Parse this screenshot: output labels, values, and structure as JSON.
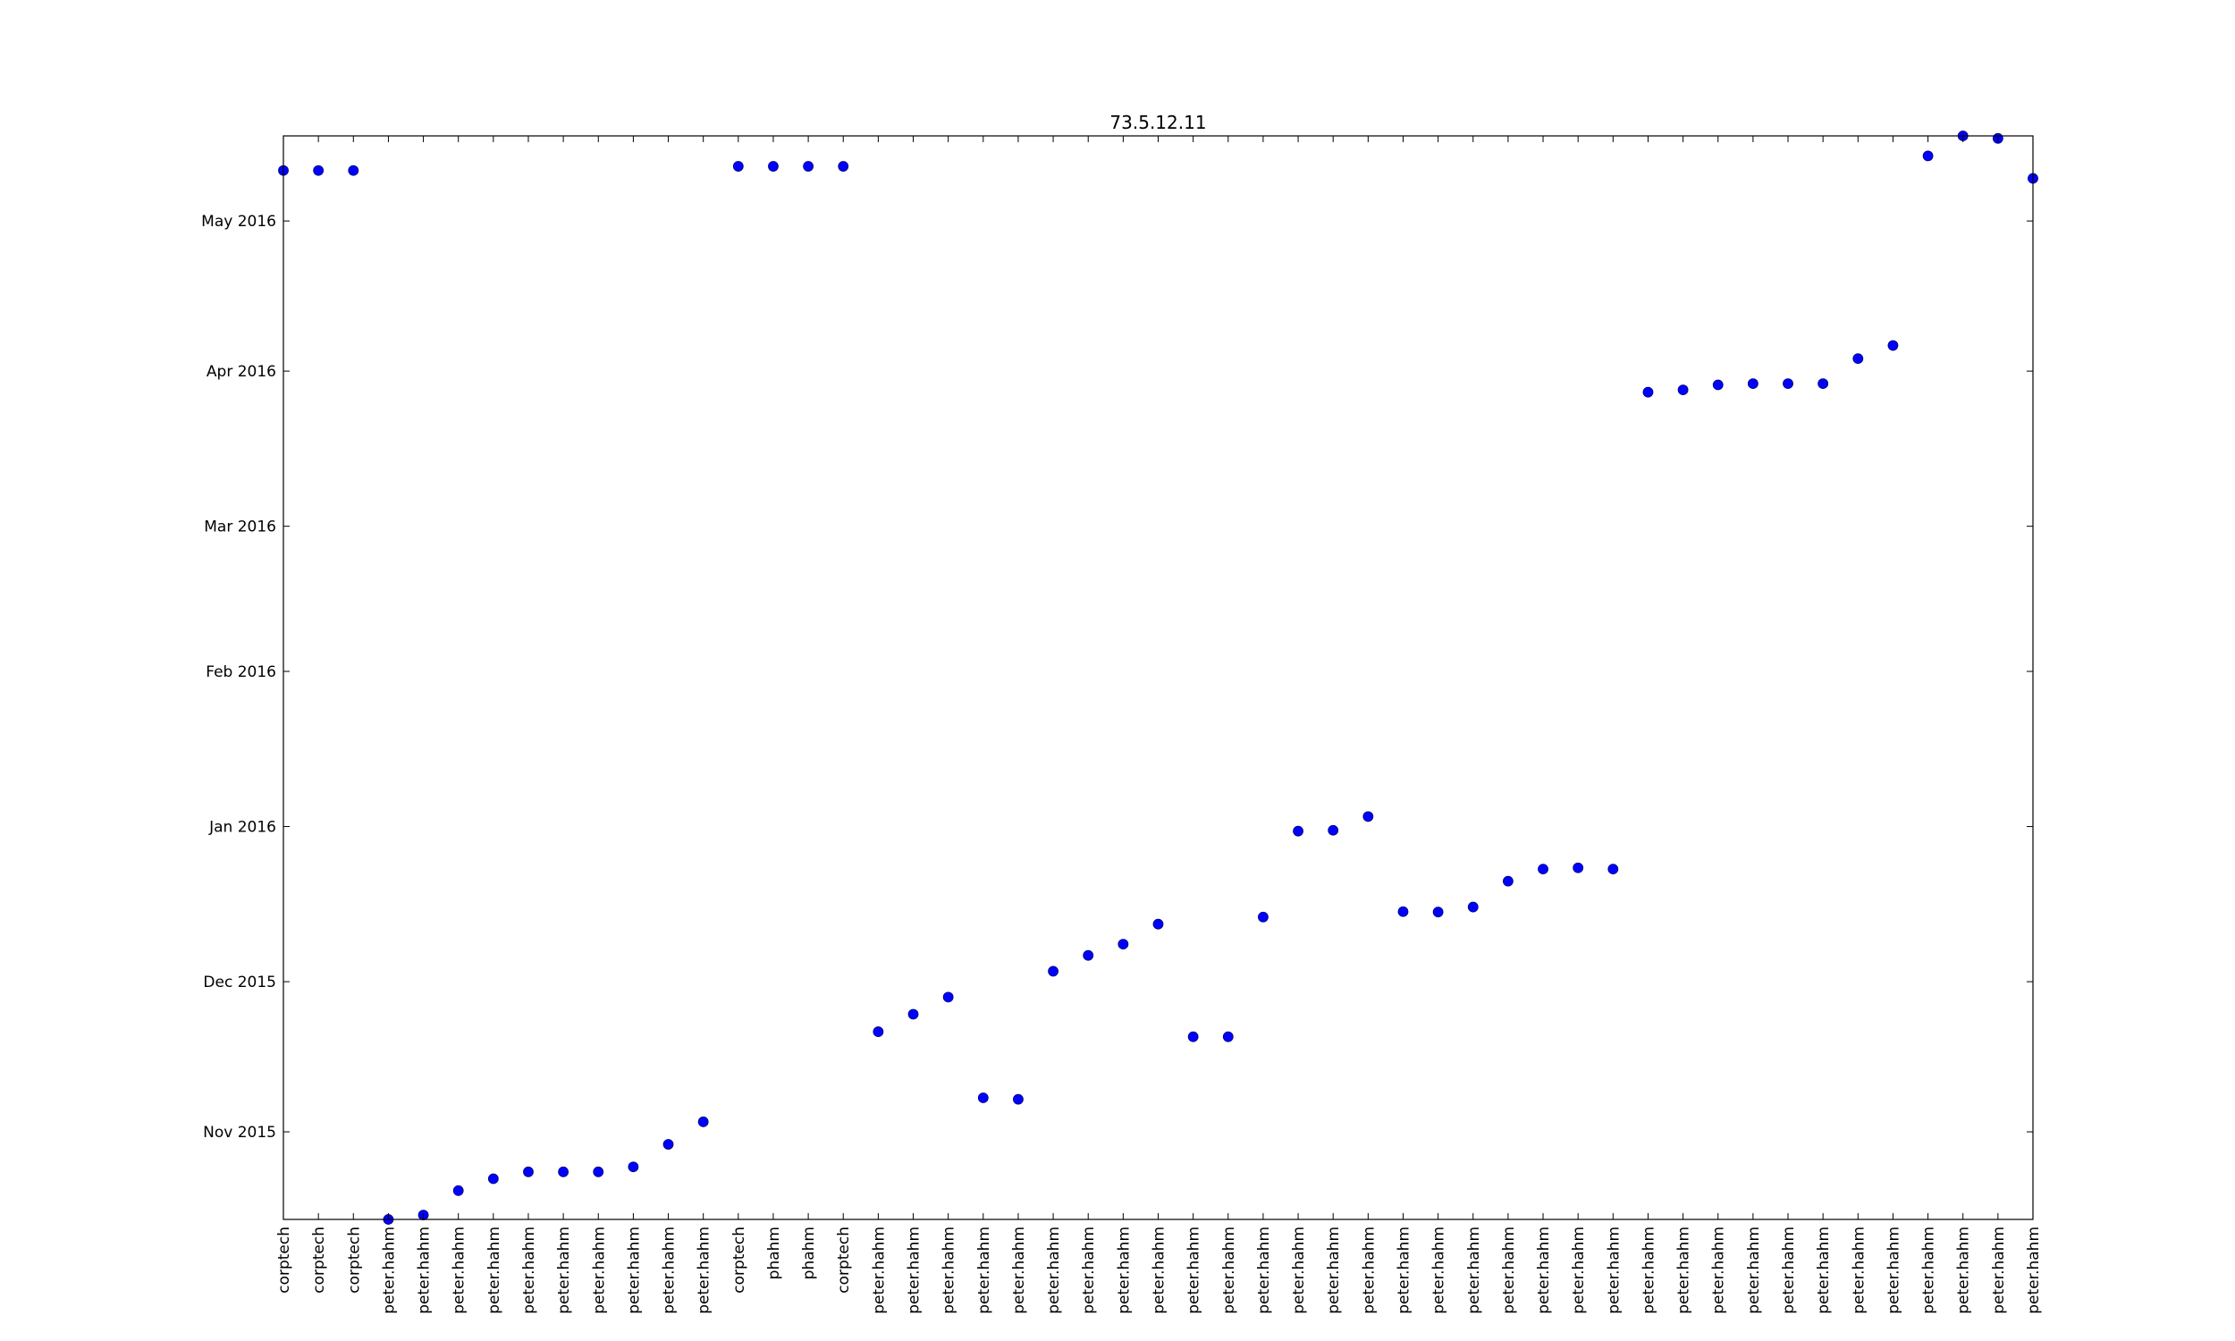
{
  "chart_data": {
    "type": "scatter",
    "title": "73.5.12.11",
    "xlabel": "",
    "ylabel": "",
    "grid": false,
    "legend": "none",
    "categories": [
      "corptech",
      "corptech",
      "corptech",
      "peter.hahm",
      "peter.hahm",
      "peter.hahm",
      "peter.hahm",
      "peter.hahm",
      "peter.hahm",
      "peter.hahm",
      "peter.hahm",
      "peter.hahm",
      "peter.hahm",
      "corptech",
      "phahm",
      "phahm",
      "corptech",
      "peter.hahm",
      "peter.hahm",
      "peter.hahm",
      "peter.hahm",
      "peter.hahm",
      "peter.hahm",
      "peter.hahm",
      "peter.hahm",
      "peter.hahm",
      "peter.hahm",
      "peter.hahm",
      "peter.hahm",
      "peter.hahm",
      "peter.hahm",
      "peter.hahm",
      "peter.hahm",
      "peter.hahm",
      "peter.hahm",
      "peter.hahm",
      "peter.hahm",
      "peter.hahm",
      "peter.hahm",
      "peter.hahm",
      "peter.hahm",
      "peter.hahm",
      "peter.hahm",
      "peter.hahm",
      "peter.hahm",
      "peter.hahm",
      "peter.hahm",
      "peter.hahm",
      "peter.hahm",
      "peter.hahm",
      "peter.hahm"
    ],
    "y_ticks": [
      "Nov 2015",
      "Dec 2015",
      "Jan 2016",
      "Feb 2016",
      "Mar 2016",
      "Apr 2016",
      "May 2016"
    ],
    "ylim": [
      "2015-10-14 12:00",
      "2016-05-18 00:00"
    ],
    "series": [
      {
        "color": "#0000ff",
        "marker": "circle",
        "y": [
          "2016-05-11 02:00",
          "2016-05-11 02:00",
          "2016-05-11 02:00",
          "2015-10-14 12:00",
          "2015-10-15 09:00",
          "2015-10-20 06:00",
          "2015-10-22 15:00",
          "2015-10-24 00:00",
          "2015-10-24 00:00",
          "2015-10-24 00:00",
          "2015-10-25 00:00",
          "2015-10-29 12:00",
          "2015-11-03 00:00",
          "2016-05-11 22:00",
          "2016-05-11 22:00",
          "2016-05-11 22:00",
          "2016-05-11 22:00",
          "2015-11-21 00:00",
          "2015-11-24 12:00",
          "2015-11-27 22:00",
          "2015-11-07 19:00",
          "2015-11-07 12:00",
          "2015-12-03 02:00",
          "2015-12-06 06:00",
          "2015-12-08 12:00",
          "2015-12-12 12:00",
          "2015-11-20 00:00",
          "2015-11-20 00:00",
          "2015-12-13 22:00",
          "2015-12-31 02:00",
          "2015-12-31 06:00",
          "2016-01-03 00:00",
          "2015-12-15 00:00",
          "2015-12-14 22:00",
          "2015-12-15 22:00",
          "2015-12-21 02:00",
          "2015-12-23 12:00",
          "2015-12-23 18:00",
          "2015-12-23 12:00",
          "2016-03-27 19:00",
          "2016-03-28 06:00",
          "2016-03-29 06:00",
          "2016-03-29 12:00",
          "2016-03-29 12:00",
          "2016-03-29 12:00",
          "2016-04-03 12:00",
          "2016-04-06 03:00",
          "2016-05-14 00:00",
          "2016-05-18 00:00",
          "2016-05-17 12:00",
          "2016-05-09 12:00"
        ]
      }
    ]
  }
}
